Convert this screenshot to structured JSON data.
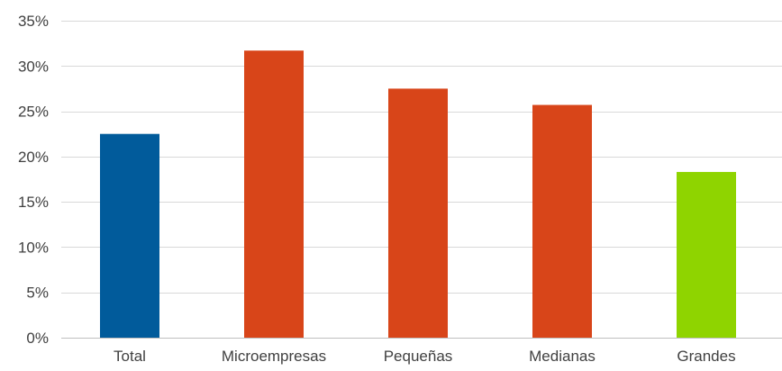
{
  "chart_data": {
    "type": "bar",
    "categories": [
      "Total",
      "Microempresas",
      "Pequeñas",
      "Medianas",
      "Grandes"
    ],
    "values": [
      22.5,
      31.7,
      27.5,
      25.7,
      18.3
    ],
    "bar_colors": [
      "#015b9b",
      "#d84519",
      "#d84519",
      "#d84519",
      "#8fd400"
    ],
    "ylim": [
      0,
      35
    ],
    "yticks": [
      0,
      5,
      10,
      15,
      20,
      25,
      30,
      35
    ],
    "ytick_format": "percent",
    "grid": true,
    "grid_color": "#d9d9d9",
    "axis_color": "#bfbfbf",
    "title": "",
    "xlabel": "",
    "ylabel": ""
  }
}
